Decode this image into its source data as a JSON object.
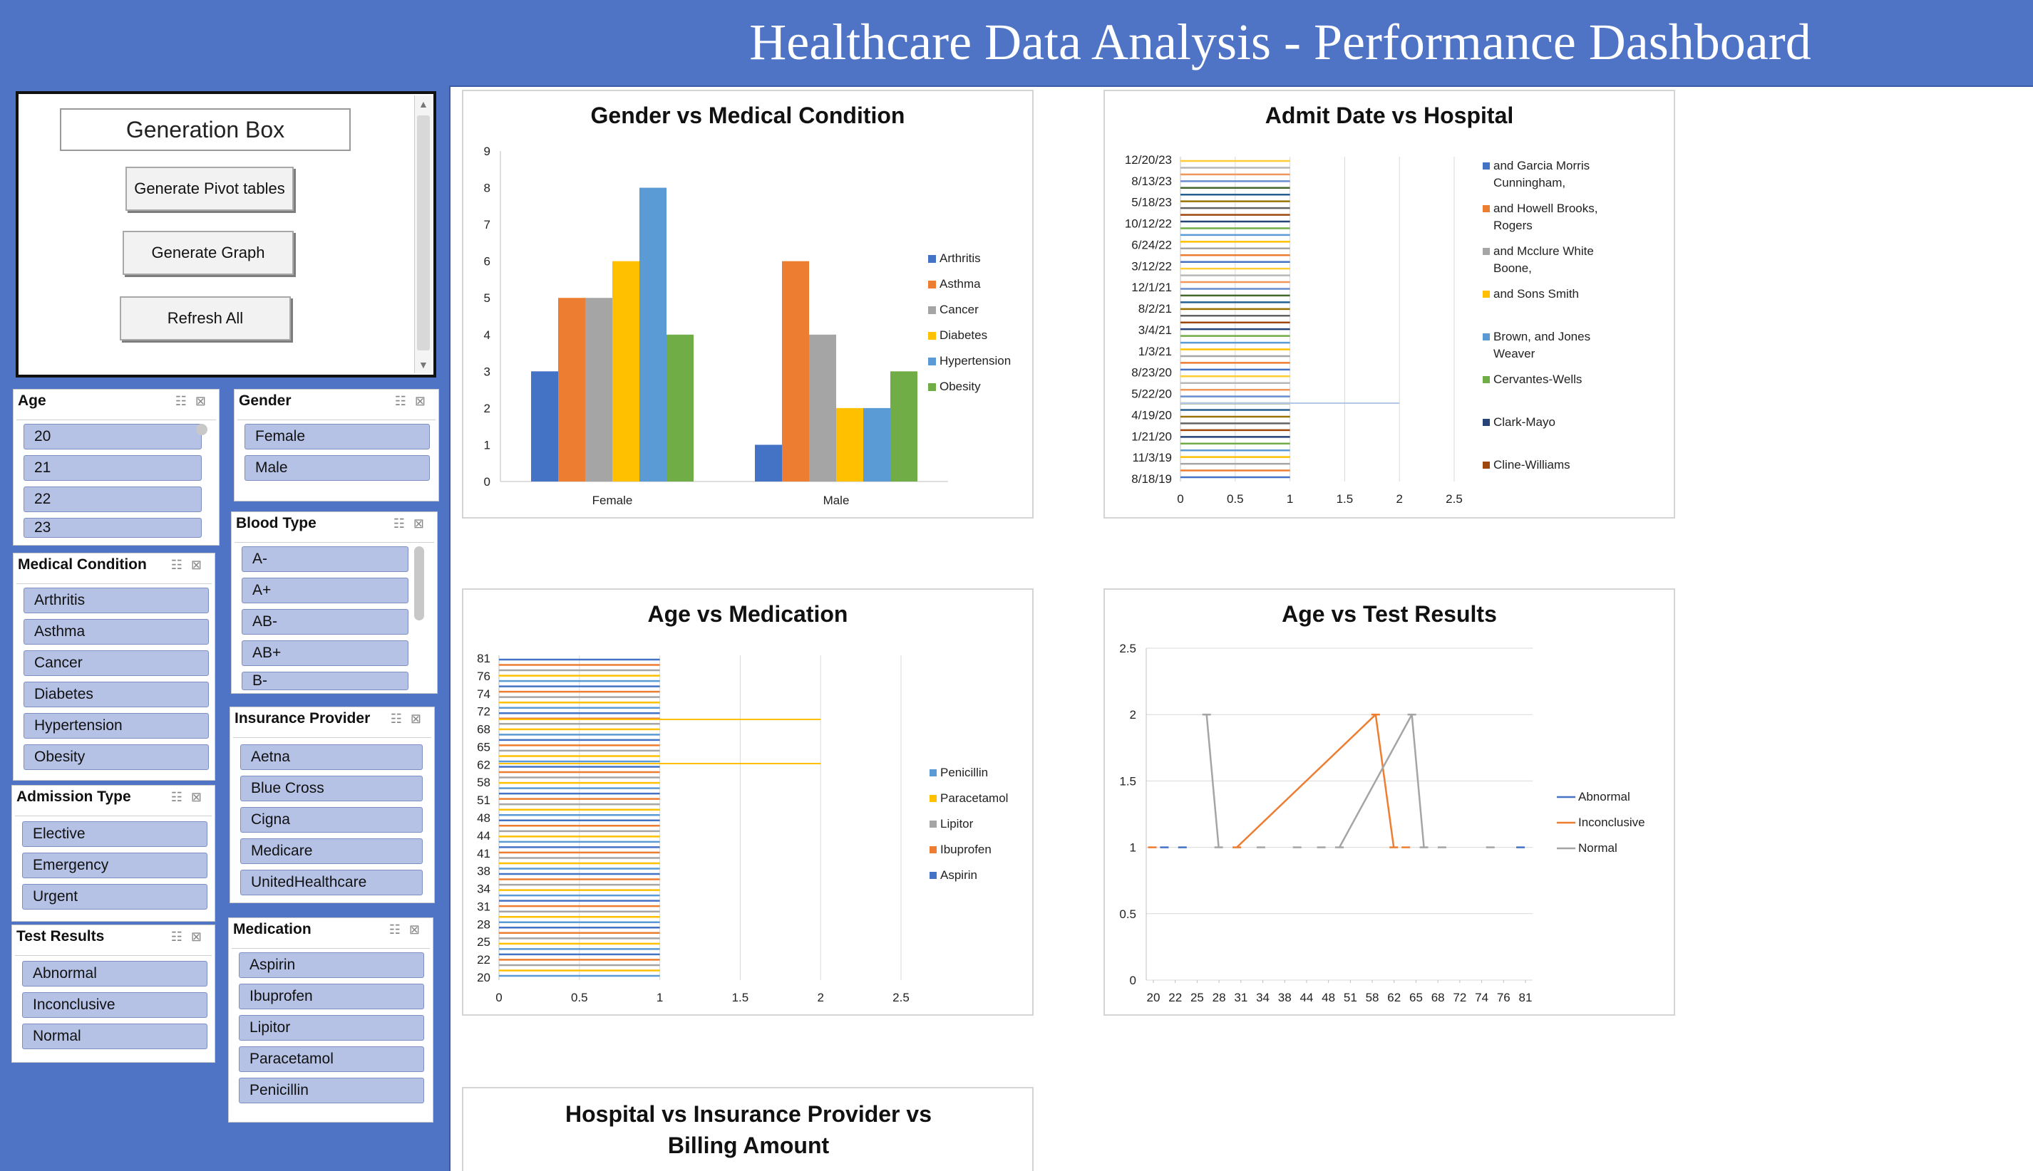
{
  "page": {
    "title": "Healthcare Data Analysis - Performance Dashboard"
  },
  "generation_box": {
    "title": "Generation Box",
    "buttons": [
      "Generate Pivot tables",
      "Generate Graph",
      "Refresh All"
    ]
  },
  "slicers": {
    "age": {
      "title": "Age",
      "items": [
        "20",
        "21",
        "22",
        "23"
      ]
    },
    "gender": {
      "title": "Gender",
      "items": [
        "Female",
        "Male"
      ]
    },
    "blood_type": {
      "title": "Blood Type",
      "items": [
        "A-",
        "A+",
        "AB-",
        "AB+",
        "B-"
      ]
    },
    "medical_condition": {
      "title": "Medical Condition",
      "items": [
        "Arthritis",
        "Asthma",
        "Cancer",
        "Diabetes",
        "Hypertension",
        "Obesity"
      ]
    },
    "insurance_provider": {
      "title": "Insurance Provider",
      "items": [
        "Aetna",
        "Blue Cross",
        "Cigna",
        "Medicare",
        "UnitedHealthcare"
      ]
    },
    "admission_type": {
      "title": "Admission Type",
      "items": [
        "Elective",
        "Emergency",
        "Urgent"
      ]
    },
    "test_results": {
      "title": "Test Results",
      "items": [
        "Abnormal",
        "Inconclusive",
        "Normal"
      ]
    },
    "medication": {
      "title": "Medication",
      "items": [
        "Aspirin",
        "Ibuprofen",
        "Lipitor",
        "Paracetamol",
        "Penicillin"
      ]
    }
  },
  "colors": {
    "Arthritis": "#4472c4",
    "Asthma": "#ed7d31",
    "Cancer": "#a5a5a5",
    "Diabetes": "#ffc000",
    "Hypertension": "#5b9bd5",
    "Obesity": "#70ad47",
    "Abnormal": "#4472c4",
    "Inconclusive": "#ed7d31",
    "Normal": "#a5a5a5",
    "Penicillin": "#5b9bd5",
    "Paracetamol": "#ffc000",
    "Lipitor": "#a5a5a5",
    "Ibuprofen": "#ed7d31",
    "Aspirin": "#4472c4"
  },
  "chart_data": [
    {
      "type": "bar",
      "title": "Gender vs Medical Condition",
      "categories": [
        "Female",
        "Male"
      ],
      "series": [
        {
          "name": "Arthritis",
          "values": [
            3,
            1
          ]
        },
        {
          "name": "Asthma",
          "values": [
            5,
            6
          ]
        },
        {
          "name": "Cancer",
          "values": [
            5,
            4
          ]
        },
        {
          "name": "Diabetes",
          "values": [
            6,
            2
          ]
        },
        {
          "name": "Hypertension",
          "values": [
            8,
            2
          ]
        },
        {
          "name": "Obesity",
          "values": [
            4,
            3
          ]
        }
      ],
      "ylim": [
        0,
        9
      ],
      "yticks": [
        "0",
        "1",
        "2",
        "3",
        "4",
        "5",
        "6",
        "7",
        "8",
        "9"
      ],
      "legend": "right"
    },
    {
      "type": "bar",
      "orientation": "horizontal",
      "title": "Admit Date vs Hospital",
      "y_tick_labels": [
        "8/18/19",
        "11/3/19",
        "1/21/20",
        "4/19/20",
        "5/22/20",
        "8/23/20",
        "1/3/21",
        "3/4/21",
        "8/2/21",
        "12/1/21",
        "3/12/22",
        "6/24/22",
        "10/12/22",
        "5/18/23",
        "8/13/23",
        "12/20/23"
      ],
      "x_tick_labels": [
        "0",
        "0.5",
        "1",
        "1.5",
        "2",
        "2.5"
      ],
      "xlim": [
        0,
        2.5
      ],
      "legend_entries": [
        "and Garcia Morris Cunningham,",
        "and Howell Brooks, Rogers",
        "and Mcclure White Boone,",
        "and Sons Smith",
        "Brown, and Jones Weaver",
        "Cervantes-Wells",
        "Clark-Mayo",
        "Cline-Williams"
      ],
      "legend_colors": [
        "#4472c4",
        "#ed7d31",
        "#a5a5a5",
        "#ffc000",
        "#5b9bd5",
        "#70ad47",
        "#264478",
        "#9e480e"
      ],
      "bars": {
        "count": 48,
        "typical_value": 1,
        "outlier_value": 2,
        "outlier_label": "5/22/20"
      },
      "legend": "right"
    },
    {
      "type": "bar",
      "orientation": "horizontal",
      "title": "Age vs Medication",
      "y_tick_labels": [
        "20",
        "22",
        "25",
        "28",
        "31",
        "34",
        "38",
        "41",
        "44",
        "48",
        "51",
        "58",
        "62",
        "65",
        "68",
        "72",
        "74",
        "76",
        "81"
      ],
      "x_tick_labels": [
        "0",
        "0.5",
        "1",
        "1.5",
        "2",
        "2.5"
      ],
      "xlim": [
        0,
        2.5
      ],
      "legend_entries": [
        "Penicillin",
        "Paracetamol",
        "Lipitor",
        "Ibuprofen",
        "Aspirin"
      ],
      "bars": {
        "count": 60,
        "typical_value": 1,
        "outliers": [
          {
            "age": "72",
            "value": 2,
            "series": "Paracetamol"
          },
          {
            "age": "64",
            "value": 2,
            "series": "Paracetamol"
          }
        ]
      },
      "legend": "right"
    },
    {
      "type": "line",
      "title": "Age vs Test Results",
      "x": [
        "20",
        "22",
        "25",
        "28",
        "31",
        "34",
        "38",
        "44",
        "48",
        "51",
        "58",
        "62",
        "65",
        "68",
        "72",
        "74",
        "76",
        "81"
      ],
      "ylim": [
        0,
        2.5
      ],
      "yticks": [
        "0",
        "0.5",
        "1",
        "1.5",
        "2",
        "2.5"
      ],
      "series": [
        {
          "name": "Abnormal",
          "points": [
            [
              22,
              1
            ],
            [
              25,
              1
            ],
            [
              81,
              1
            ]
          ]
        },
        {
          "name": "Inconclusive",
          "points": [
            [
              20,
              1
            ],
            [
              34,
              1
            ],
            [
              57,
              2
            ],
            [
              60,
              1
            ],
            [
              62,
              1
            ]
          ]
        },
        {
          "name": "Normal",
          "points": [
            [
              29,
              2
            ],
            [
              31,
              1
            ],
            [
              38,
              1
            ],
            [
              44,
              1
            ],
            [
              48,
              1
            ],
            [
              51,
              1
            ],
            [
              63,
              2
            ],
            [
              65,
              1
            ],
            [
              68,
              1
            ],
            [
              76,
              1
            ]
          ]
        }
      ],
      "legend": "right"
    },
    {
      "type": "bar",
      "title": "Hospital vs Insurance Provider vs Billing Amount"
    }
  ]
}
